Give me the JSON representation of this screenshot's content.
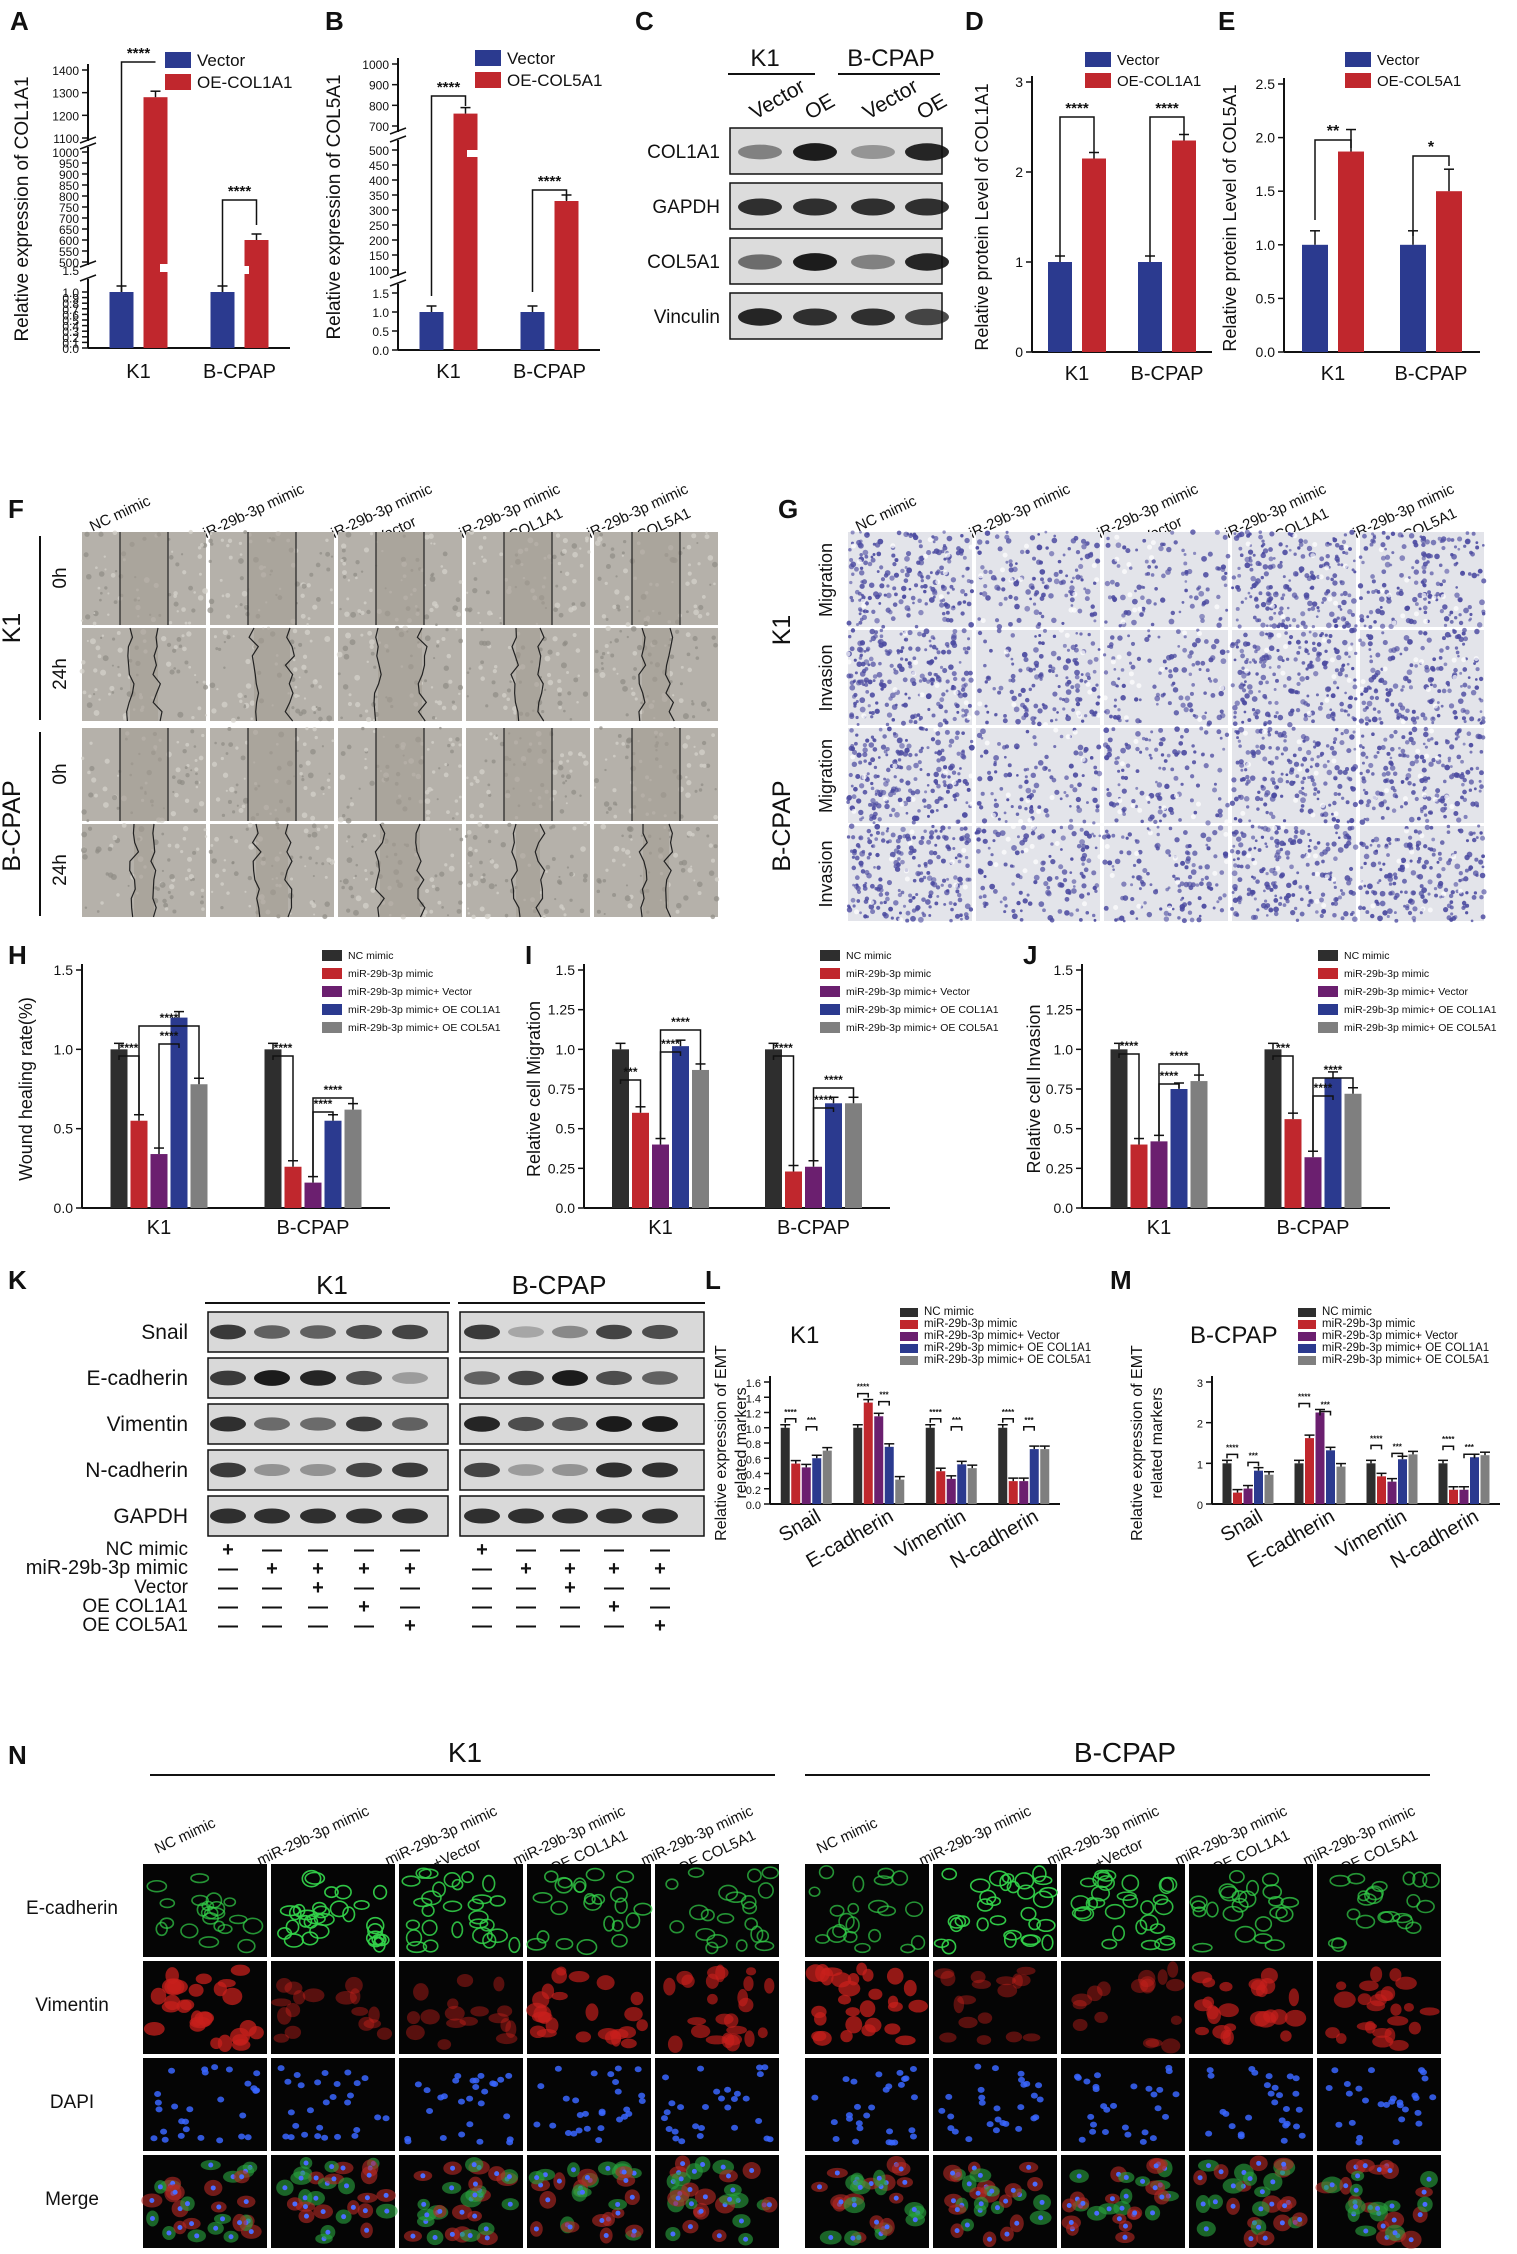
{
  "colors": {
    "vector": "#2b3a8f",
    "oe": "#c0272d",
    "nc": "#2e2e2e",
    "mimic": "#c0272d",
    "mimic_vector": "#6b1f6f",
    "oe_col1a1": "#2b3a8f",
    "oe_col5a1": "#7f7f7f"
  },
  "panels": {
    "A": "A",
    "B": "B",
    "C": "C",
    "D": "D",
    "E": "E",
    "F": "F",
    "G": "G",
    "H": "H",
    "I": "I",
    "J": "J",
    "K": "K",
    "L": "L",
    "M": "M",
    "N": "N"
  },
  "chart_data": [
    {
      "panel": "A",
      "type": "bar",
      "ylabel": "Relative expression of COL1A1",
      "categories": [
        "K1",
        "B-CPAP"
      ],
      "series": [
        {
          "name": "Vector",
          "values": [
            1.0,
            1.0
          ]
        },
        {
          "name": "OE-COL1A1",
          "values": [
            1280,
            600
          ]
        }
      ],
      "yticks": [
        "0.0",
        "0.1",
        "0.2",
        "0.3",
        "0.4",
        "0.5",
        "0.6",
        "0.7",
        "0.8",
        "0.9",
        "1.0",
        "1.5",
        "500",
        "550",
        "600",
        "650",
        "700",
        "750",
        "800",
        "850",
        "900",
        "950",
        "1000",
        "1100",
        "1200",
        "1300",
        "1400"
      ],
      "significance": [
        "****",
        "****"
      ]
    },
    {
      "panel": "B",
      "type": "bar",
      "ylabel": "Relative expression of COL5A1",
      "categories": [
        "K1",
        "B-CPAP"
      ],
      "series": [
        {
          "name": "Vector",
          "values": [
            1.0,
            1.0
          ]
        },
        {
          "name": "OE-COL5A1",
          "values": [
            760,
            330
          ]
        }
      ],
      "yticks": [
        "0.0",
        "0.5",
        "1.0",
        "1.5",
        "100",
        "150",
        "200",
        "250",
        "300",
        "350",
        "400",
        "450",
        "500",
        "700",
        "800",
        "900",
        "1000"
      ],
      "significance": [
        "****",
        "****"
      ]
    },
    {
      "panel": "D",
      "type": "bar",
      "ylabel": "Relative protein Level of COL1A1",
      "categories": [
        "K1",
        "B-CPAP"
      ],
      "series": [
        {
          "name": "Vector",
          "values": [
            1.0,
            1.0
          ]
        },
        {
          "name": "OE-COL1A1",
          "values": [
            2.15,
            2.35
          ]
        }
      ],
      "ylim": [
        0,
        3
      ],
      "yticks": [
        "0",
        "1",
        "2",
        "3"
      ],
      "significance": [
        "****",
        "****"
      ]
    },
    {
      "panel": "E",
      "type": "bar",
      "ylabel": "Relative protein Level of COL5A1",
      "categories": [
        "K1",
        "B-CPAP"
      ],
      "series": [
        {
          "name": "Vector",
          "values": [
            1.0,
            1.0
          ]
        },
        {
          "name": "OE-COL5A1",
          "values": [
            1.87,
            1.5
          ]
        }
      ],
      "ylim": [
        0,
        2.5
      ],
      "yticks": [
        "0.0",
        "0.5",
        "1.0",
        "1.5",
        "2.0",
        "2.5"
      ],
      "significance": [
        "**",
        "*"
      ]
    },
    {
      "panel": "H",
      "type": "bar",
      "ylabel": "Wound healing rate(%)",
      "categories": [
        "K1",
        "B-CPAP"
      ],
      "series": [
        {
          "name": "NC mimic",
          "values": [
            1.0,
            1.0
          ]
        },
        {
          "name": "miR-29b-3p mimic",
          "values": [
            0.55,
            0.26
          ]
        },
        {
          "name": "miR-29b-3p mimic+ Vector",
          "values": [
            0.34,
            0.16
          ]
        },
        {
          "name": "miR-29b-3p mimic+ OE COL1A1",
          "values": [
            1.2,
            0.55
          ]
        },
        {
          "name": "miR-29b-3p mimic+ OE COL5A1",
          "values": [
            0.78,
            0.62
          ]
        }
      ],
      "ylim": [
        0,
        1.5
      ],
      "yticks": [
        "0.0",
        "0.5",
        "1.0",
        "1.5"
      ]
    },
    {
      "panel": "I",
      "type": "bar",
      "ylabel": "Relative cell Migration",
      "categories": [
        "K1",
        "B-CPAP"
      ],
      "series": [
        {
          "name": "NC mimic",
          "values": [
            1.0,
            1.0
          ]
        },
        {
          "name": "miR-29b-3p mimic",
          "values": [
            0.6,
            0.23
          ]
        },
        {
          "name": "miR-29b-3p mimic+ Vector",
          "values": [
            0.4,
            0.26
          ]
        },
        {
          "name": "miR-29b-3p mimic+ OE COL1A1",
          "values": [
            1.02,
            0.66
          ]
        },
        {
          "name": "miR-29b-3p mimic+ OE COL5A1",
          "values": [
            0.87,
            0.66
          ]
        }
      ],
      "ylim": [
        0,
        1.5
      ],
      "yticks": [
        "0.0",
        "0.25",
        "0.5",
        "0.75",
        "1.0",
        "1.25",
        "1.5"
      ]
    },
    {
      "panel": "J",
      "type": "bar",
      "ylabel": "Relative cell Invasion",
      "categories": [
        "K1",
        "B-CPAP"
      ],
      "series": [
        {
          "name": "NC mimic",
          "values": [
            1.0,
            1.0
          ]
        },
        {
          "name": "miR-29b-3p mimic",
          "values": [
            0.4,
            0.56
          ]
        },
        {
          "name": "miR-29b-3p mimic+ Vector",
          "values": [
            0.42,
            0.32
          ]
        },
        {
          "name": "miR-29b-3p mimic+ OE COL1A1",
          "values": [
            0.75,
            0.82
          ]
        },
        {
          "name": "miR-29b-3p mimic+ OE COL5A1",
          "values": [
            0.8,
            0.72
          ]
        }
      ],
      "ylim": [
        0,
        1.5
      ],
      "yticks": [
        "0.0",
        "0.25",
        "0.5",
        "0.75",
        "1.0",
        "1.25",
        "1.5"
      ]
    },
    {
      "panel": "L",
      "type": "bar",
      "title": "K1",
      "ylabel": "Relative expression of EMT related markers",
      "categories": [
        "Snail",
        "E-cadherin",
        "Vimentin",
        "N-cadherin"
      ],
      "series": [
        {
          "name": "NC mimic",
          "values": [
            1.0,
            1.0,
            1.0,
            1.0
          ]
        },
        {
          "name": "miR-29b-3p mimic",
          "values": [
            0.53,
            1.33,
            0.43,
            0.3
          ]
        },
        {
          "name": "miR-29b-3p mimic+ Vector",
          "values": [
            0.48,
            1.15,
            0.33,
            0.3
          ]
        },
        {
          "name": "miR-29b-3p mimic+ OE COL1A1",
          "values": [
            0.6,
            0.75,
            0.52,
            0.72
          ]
        },
        {
          "name": "miR-29b-3p mimic+ OE COL5A1",
          "values": [
            0.7,
            0.32,
            0.47,
            0.72
          ]
        }
      ],
      "ylim": [
        0,
        1.6
      ],
      "yticks": [
        "0.0",
        "0.2",
        "0.4",
        "0.6",
        "0.8",
        "1.0",
        "1.2",
        "1.4",
        "1.6"
      ]
    },
    {
      "panel": "M",
      "type": "bar",
      "title": "B-CPAP",
      "ylabel": "Relative expression of EMT related markers",
      "categories": [
        "Snail",
        "E-cadherin",
        "Vimentin",
        "N-cadherin"
      ],
      "series": [
        {
          "name": "NC mimic",
          "values": [
            1.0,
            1.0,
            1.0,
            1.0
          ]
        },
        {
          "name": "miR-29b-3p mimic",
          "values": [
            0.28,
            1.62,
            0.68,
            0.35
          ]
        },
        {
          "name": "miR-29b-3p mimic+ Vector",
          "values": [
            0.38,
            2.25,
            0.55,
            0.35
          ]
        },
        {
          "name": "miR-29b-3p mimic+ OE COL1A1",
          "values": [
            0.82,
            1.32,
            1.1,
            1.15
          ]
        },
        {
          "name": "miR-29b-3p mimic+ OE COL5A1",
          "values": [
            0.72,
            0.92,
            1.22,
            1.2
          ]
        }
      ],
      "ylim": [
        0,
        3
      ],
      "yticks": [
        "0",
        "1",
        "2",
        "3"
      ]
    }
  ],
  "western_c": {
    "groups": [
      "K1",
      "B-CPAP"
    ],
    "lanes": [
      "Vector",
      "OE",
      "Vector",
      "OE"
    ],
    "proteins": [
      "COL1A1",
      "GAPDH",
      "COL5A1",
      "Vinculin"
    ]
  },
  "scratch_f": {
    "columns": [
      "NC mimic",
      "miR-29b-3p mimic",
      "miR-29b-3p mimic +Vector",
      "miR-29b-3p mimic +OE COL1A1",
      "miR-29b-3p mimic +OE COL5A1"
    ],
    "cells": [
      "K1",
      "B-CPAP"
    ],
    "times": [
      "0h",
      "24h"
    ]
  },
  "transwell_g": {
    "columns": [
      "NC mimic",
      "miR-29b-3p mimic",
      "miR-29b-3p mimic +Vector",
      "miR-29b-3p mimic +OE COL1A1",
      "miR-29b-3p mimic +OE COL5A1"
    ],
    "cells": [
      "K1",
      "B-CPAP"
    ],
    "assays": [
      "Migration",
      "Invasion"
    ]
  },
  "western_k": {
    "groups": [
      "K1",
      "B-CPAP"
    ],
    "proteins": [
      "Snail",
      "E-cadherin",
      "Vimentin",
      "N-cadherin",
      "GAPDH"
    ],
    "conditions": [
      "NC mimic",
      "miR-29b-3p mimic",
      "Vector",
      "OE COL1A1",
      "OE COL5A1"
    ],
    "matrix": [
      [
        "+",
        "—",
        "—",
        "—",
        "—"
      ],
      [
        "—",
        "+",
        "+",
        "+",
        "+"
      ],
      [
        "—",
        "—",
        "+",
        "—",
        "—"
      ],
      [
        "—",
        "—",
        "—",
        "+",
        "—"
      ],
      [
        "—",
        "—",
        "—",
        "—",
        "+"
      ]
    ]
  },
  "if_n": {
    "groups": [
      "K1",
      "B-CPAP"
    ],
    "columns": [
      "NC mimic",
      "miR-29b-3p mimic",
      "miR-29b-3p mimic +Vector",
      "miR-29b-3p mimic +OE COL1A1",
      "miR-29b-3p mimic +OE COL5A1"
    ],
    "rows": [
      "E-cadherin",
      "Vimentin",
      "DAPI",
      "Merge"
    ]
  }
}
